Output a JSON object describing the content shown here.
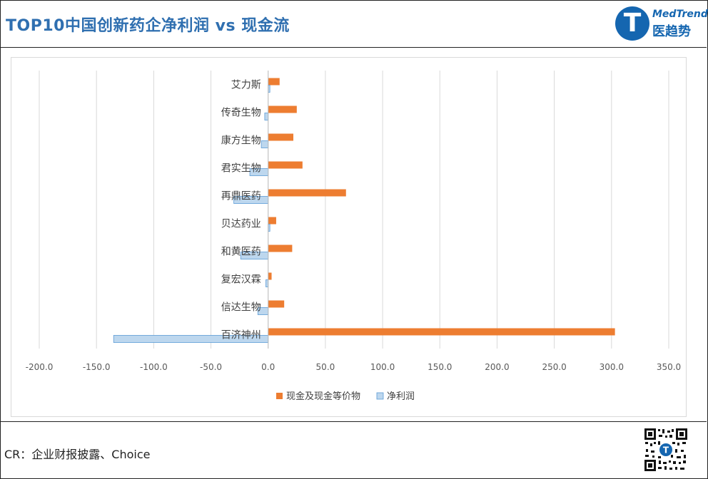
{
  "header": {
    "title": "TOP10中国创新药企净利润 vs 现金流",
    "logo_en": "MedTrend",
    "logo_cn": "医趋势",
    "logo_letter": "T"
  },
  "footer": {
    "credit": "CR：企业财报披露、Choice"
  },
  "colors": {
    "cash": "#ed7d31",
    "profit": "#bdd7ee",
    "profit_stroke": "#5b9bd5",
    "title": "#2f6fb0",
    "brand": "#1566b0"
  },
  "chart_data": {
    "type": "bar",
    "orientation": "horizontal",
    "categories": [
      "艾力斯",
      "传奇生物",
      "康方生物",
      "君实生物",
      "再鼎医药",
      "贝达药业",
      "和黄医药",
      "复宏汉霖",
      "信达生物",
      "百济神州"
    ],
    "series": [
      {
        "name": "现金及现金等价物",
        "values": [
          10,
          25,
          22,
          30,
          68,
          7,
          21,
          3,
          14,
          303
        ]
      },
      {
        "name": "净利润",
        "values": [
          1.5,
          -3.0,
          -6.0,
          -16.0,
          -30.0,
          1.5,
          -24.0,
          -2.0,
          -9.0,
          -135.0
        ]
      }
    ],
    "xlim": [
      -200,
      350
    ],
    "xticks": [
      "-200.0",
      "-150.0",
      "-100.0",
      "-50.0",
      "0.0",
      "50.0",
      "100.0",
      "150.0",
      "200.0",
      "250.0",
      "300.0",
      "350.0"
    ],
    "xtick_values": [
      -200,
      -150,
      -100,
      -50,
      0,
      50,
      100,
      150,
      200,
      250,
      300,
      350
    ],
    "grid": true,
    "legend_position": "bottom"
  }
}
